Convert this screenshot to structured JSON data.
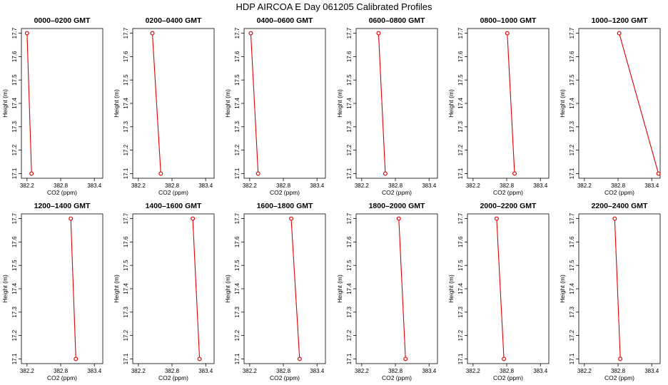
{
  "title": "HDP  AIRCOA E  Day 061205  Calibrated Profiles",
  "colors": {
    "series": "#dd0000",
    "axes": "#000000"
  },
  "chart_data": [
    {
      "type": "line",
      "title": "0000–0200 GMT",
      "xlabel": "CO2 (ppm)",
      "ylabel": "Height (m)",
      "xlim": [
        382.1,
        383.55
      ],
      "ylim": [
        17.08,
        17.72
      ],
      "xticks": [
        "382.2",
        "382.8",
        "383.4"
      ],
      "yticks": [
        "17.1",
        "17.2",
        "17.3",
        "17.4",
        "17.5",
        "17.6",
        "17.7"
      ],
      "series": [
        {
          "x": [
            382.2,
            382.28
          ],
          "y": [
            17.7,
            17.1
          ]
        }
      ]
    },
    {
      "type": "line",
      "title": "0200–0400 GMT",
      "xlabel": "CO2 (ppm)",
      "ylabel": "Height (m)",
      "xlim": [
        382.1,
        383.55
      ],
      "ylim": [
        17.08,
        17.72
      ],
      "xticks": [
        "382.2",
        "382.8",
        "383.4"
      ],
      "yticks": [
        "17.1",
        "17.2",
        "17.3",
        "17.4",
        "17.5",
        "17.6",
        "17.7"
      ],
      "series": [
        {
          "x": [
            382.45,
            382.6
          ],
          "y": [
            17.7,
            17.1
          ]
        }
      ]
    },
    {
      "type": "line",
      "title": "0400–0600 GMT",
      "xlabel": "CO2 (ppm)",
      "ylabel": "Height (m)",
      "xlim": [
        382.1,
        383.55
      ],
      "ylim": [
        17.08,
        17.72
      ],
      "xticks": [
        "382.2",
        "382.8",
        "383.4"
      ],
      "yticks": [
        "17.1",
        "17.2",
        "17.3",
        "17.4",
        "17.5",
        "17.6",
        "17.7"
      ],
      "series": [
        {
          "x": [
            382.22,
            382.35
          ],
          "y": [
            17.7,
            17.1
          ]
        }
      ]
    },
    {
      "type": "line",
      "title": "0600–0800 GMT",
      "xlabel": "CO2 (ppm)",
      "ylabel": "Height (m)",
      "xlim": [
        382.1,
        383.55
      ],
      "ylim": [
        17.08,
        17.72
      ],
      "xticks": [
        "382.2",
        "382.8",
        "383.4"
      ],
      "yticks": [
        "17.1",
        "17.2",
        "17.3",
        "17.4",
        "17.5",
        "17.6",
        "17.7"
      ],
      "series": [
        {
          "x": [
            382.5,
            382.62
          ],
          "y": [
            17.7,
            17.1
          ]
        }
      ]
    },
    {
      "type": "line",
      "title": "0800–1000 GMT",
      "xlabel": "CO2 (ppm)",
      "ylabel": "Height (m)",
      "xlim": [
        382.1,
        383.55
      ],
      "ylim": [
        17.08,
        17.72
      ],
      "xticks": [
        "382.2",
        "382.8",
        "383.4"
      ],
      "yticks": [
        "17.1",
        "17.2",
        "17.3",
        "17.4",
        "17.5",
        "17.6",
        "17.7"
      ],
      "series": [
        {
          "x": [
            382.81,
            382.94
          ],
          "y": [
            17.7,
            17.1
          ]
        }
      ]
    },
    {
      "type": "line",
      "title": "1000–1200 GMT",
      "xlabel": "CO2 (ppm)",
      "ylabel": "Height (m)",
      "xlim": [
        382.1,
        383.55
      ],
      "ylim": [
        17.08,
        17.72
      ],
      "xticks": [
        "382.2",
        "382.8",
        "383.4"
      ],
      "yticks": [
        "17.1",
        "17.2",
        "17.3",
        "17.4",
        "17.5",
        "17.6",
        "17.7"
      ],
      "series": [
        {
          "x": [
            382.82,
            383.52
          ],
          "y": [
            17.7,
            17.1
          ]
        }
      ]
    },
    {
      "type": "line",
      "title": "1200–1400 GMT",
      "xlabel": "CO2 (ppm)",
      "ylabel": "Height (m)",
      "xlim": [
        382.1,
        383.55
      ],
      "ylim": [
        17.08,
        17.72
      ],
      "xticks": [
        "382.2",
        "382.8",
        "383.4"
      ],
      "yticks": [
        "17.1",
        "17.2",
        "17.3",
        "17.4",
        "17.5",
        "17.6",
        "17.7"
      ],
      "series": [
        {
          "x": [
            382.98,
            383.07
          ],
          "y": [
            17.7,
            17.1
          ]
        }
      ]
    },
    {
      "type": "line",
      "title": "1400–1600 GMT",
      "xlabel": "CO2 (ppm)",
      "ylabel": "Height (m)",
      "xlim": [
        382.1,
        383.55
      ],
      "ylim": [
        17.08,
        17.72
      ],
      "xticks": [
        "382.2",
        "382.8",
        "383.4"
      ],
      "yticks": [
        "17.1",
        "17.2",
        "17.3",
        "17.4",
        "17.5",
        "17.6",
        "17.7"
      ],
      "series": [
        {
          "x": [
            383.17,
            383.29
          ],
          "y": [
            17.7,
            17.1
          ]
        }
      ]
    },
    {
      "type": "line",
      "title": "1600–1800 GMT",
      "xlabel": "CO2 (ppm)",
      "ylabel": "Height (m)",
      "xlim": [
        382.1,
        383.55
      ],
      "ylim": [
        17.08,
        17.72
      ],
      "xticks": [
        "382.2",
        "382.8",
        "383.4"
      ],
      "yticks": [
        "17.1",
        "17.2",
        "17.3",
        "17.4",
        "17.5",
        "17.6",
        "17.7"
      ],
      "series": [
        {
          "x": [
            382.94,
            383.09
          ],
          "y": [
            17.7,
            17.1
          ]
        }
      ]
    },
    {
      "type": "line",
      "title": "1800–2000 GMT",
      "xlabel": "CO2 (ppm)",
      "ylabel": "Height (m)",
      "xlim": [
        382.1,
        383.55
      ],
      "ylim": [
        17.08,
        17.72
      ],
      "xticks": [
        "382.2",
        "382.8",
        "383.4"
      ],
      "yticks": [
        "17.1",
        "17.2",
        "17.3",
        "17.4",
        "17.5",
        "17.6",
        "17.7"
      ],
      "series": [
        {
          "x": [
            382.86,
            382.98
          ],
          "y": [
            17.7,
            17.1
          ]
        }
      ]
    },
    {
      "type": "line",
      "title": "2000–2200 GMT",
      "xlabel": "CO2 (ppm)",
      "ylabel": "Height (m)",
      "xlim": [
        382.1,
        383.55
      ],
      "ylim": [
        17.08,
        17.72
      ],
      "xticks": [
        "382.2",
        "382.8",
        "383.4"
      ],
      "yticks": [
        "17.1",
        "17.2",
        "17.3",
        "17.4",
        "17.5",
        "17.6",
        "17.7"
      ],
      "series": [
        {
          "x": [
            382.62,
            382.75
          ],
          "y": [
            17.7,
            17.1
          ]
        }
      ]
    },
    {
      "type": "line",
      "title": "2200–2400 GMT",
      "xlabel": "CO2 (ppm)",
      "ylabel": "Height (m)",
      "xlim": [
        382.1,
        383.55
      ],
      "ylim": [
        17.08,
        17.72
      ],
      "xticks": [
        "382.2",
        "382.8",
        "383.4"
      ],
      "yticks": [
        "17.1",
        "17.2",
        "17.3",
        "17.4",
        "17.5",
        "17.6",
        "17.7"
      ],
      "series": [
        {
          "x": [
            382.74,
            382.84
          ],
          "y": [
            17.7,
            17.1
          ]
        }
      ]
    }
  ]
}
